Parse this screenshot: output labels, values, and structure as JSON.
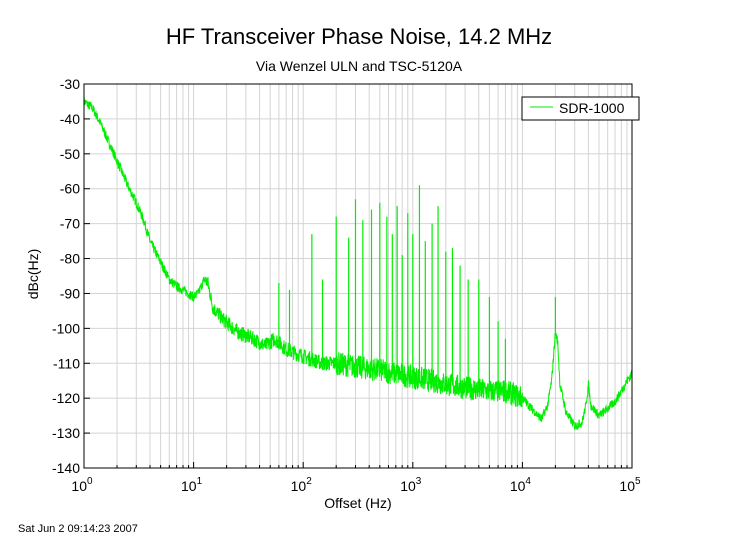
{
  "chart_data": {
    "type": "line",
    "title": "HF Transceiver Phase Noise, 14.2 MHz",
    "subtitle": "Via Wenzel ULN and TSC-5120A",
    "xlabel": "Offset (Hz)",
    "ylabel": "dBc(Hz)",
    "x_scale": "log",
    "xlim": [
      1,
      100000
    ],
    "ylim": [
      -140,
      -30
    ],
    "x_ticks": [
      {
        "base": "10",
        "exp": "0"
      },
      {
        "base": "10",
        "exp": "1"
      },
      {
        "base": "10",
        "exp": "2"
      },
      {
        "base": "10",
        "exp": "3"
      },
      {
        "base": "10",
        "exp": "4"
      },
      {
        "base": "10",
        "exp": "5"
      }
    ],
    "y_ticks": [
      "-30",
      "-40",
      "-50",
      "-60",
      "-70",
      "-80",
      "-90",
      "-100",
      "-110",
      "-120",
      "-130",
      "-140"
    ],
    "grid": true,
    "legend_position": "top-right",
    "series": [
      {
        "name": "SDR-1000",
        "color": "#00ee00",
        "points": [
          [
            1.0,
            -35
          ],
          [
            1.2,
            -37
          ],
          [
            1.4,
            -41
          ],
          [
            1.7,
            -47
          ],
          [
            2.0,
            -52
          ],
          [
            2.5,
            -59
          ],
          [
            3.0,
            -64
          ],
          [
            3.5,
            -69
          ],
          [
            4.0,
            -75
          ],
          [
            5.0,
            -81
          ],
          [
            6.0,
            -86
          ],
          [
            7.0,
            -88
          ],
          [
            8.0,
            -89
          ],
          [
            10.0,
            -91
          ],
          [
            11.0,
            -90
          ],
          [
            12.5,
            -86
          ],
          [
            13.5,
            -87
          ],
          [
            15.0,
            -94
          ],
          [
            18.0,
            -97
          ],
          [
            25.0,
            -101
          ],
          [
            35.0,
            -103
          ],
          [
            45.0,
            -105
          ],
          [
            55.0,
            -103
          ],
          [
            70.0,
            -106
          ],
          [
            100.0,
            -108
          ],
          [
            150.0,
            -110
          ],
          [
            200.0,
            -110
          ],
          [
            300.0,
            -111
          ],
          [
            500.0,
            -112
          ],
          [
            700.0,
            -113
          ],
          [
            1000.0,
            -114
          ],
          [
            1500.0,
            -115
          ],
          [
            2000.0,
            -116
          ],
          [
            3000.0,
            -117
          ],
          [
            5000.0,
            -118
          ],
          [
            7000.0,
            -118
          ],
          [
            10000.0,
            -120
          ],
          [
            13000.0,
            -124
          ],
          [
            15000.0,
            -126
          ],
          [
            17000.0,
            -122
          ],
          [
            18500.0,
            -115
          ],
          [
            20000.0,
            -101
          ],
          [
            21000.0,
            -104
          ],
          [
            22000.0,
            -116
          ],
          [
            25000.0,
            -124
          ],
          [
            30000.0,
            -128
          ],
          [
            35000.0,
            -127
          ],
          [
            38000.0,
            -122
          ],
          [
            40000.0,
            -116
          ],
          [
            42000.0,
            -122
          ],
          [
            50000.0,
            -125
          ],
          [
            60000.0,
            -123
          ],
          [
            70000.0,
            -121
          ],
          [
            80000.0,
            -118
          ],
          [
            90000.0,
            -115
          ],
          [
            100000.0,
            -113
          ]
        ],
        "spurs": [
          [
            60,
            -87
          ],
          [
            75,
            -89
          ],
          [
            120,
            -73
          ],
          [
            150,
            -86
          ],
          [
            200,
            -68
          ],
          [
            260,
            -74
          ],
          [
            300,
            -63
          ],
          [
            350,
            -69
          ],
          [
            420,
            -66
          ],
          [
            500,
            -64
          ],
          [
            580,
            -68
          ],
          [
            650,
            -73
          ],
          [
            720,
            -65
          ],
          [
            800,
            -79
          ],
          [
            900,
            -67
          ],
          [
            1000,
            -73
          ],
          [
            1150,
            -59
          ],
          [
            1300,
            -75
          ],
          [
            1500,
            -70
          ],
          [
            1700,
            -65
          ],
          [
            2000,
            -78
          ],
          [
            2300,
            -77
          ],
          [
            2700,
            -82
          ],
          [
            3200,
            -86
          ],
          [
            4000,
            -86
          ],
          [
            5000,
            -91
          ],
          [
            6000,
            -98
          ],
          [
            7000,
            -103
          ],
          [
            20000,
            -91
          ]
        ]
      }
    ]
  },
  "footer": {
    "timestamp": "Sat Jun  2 09:14:23 2007"
  }
}
